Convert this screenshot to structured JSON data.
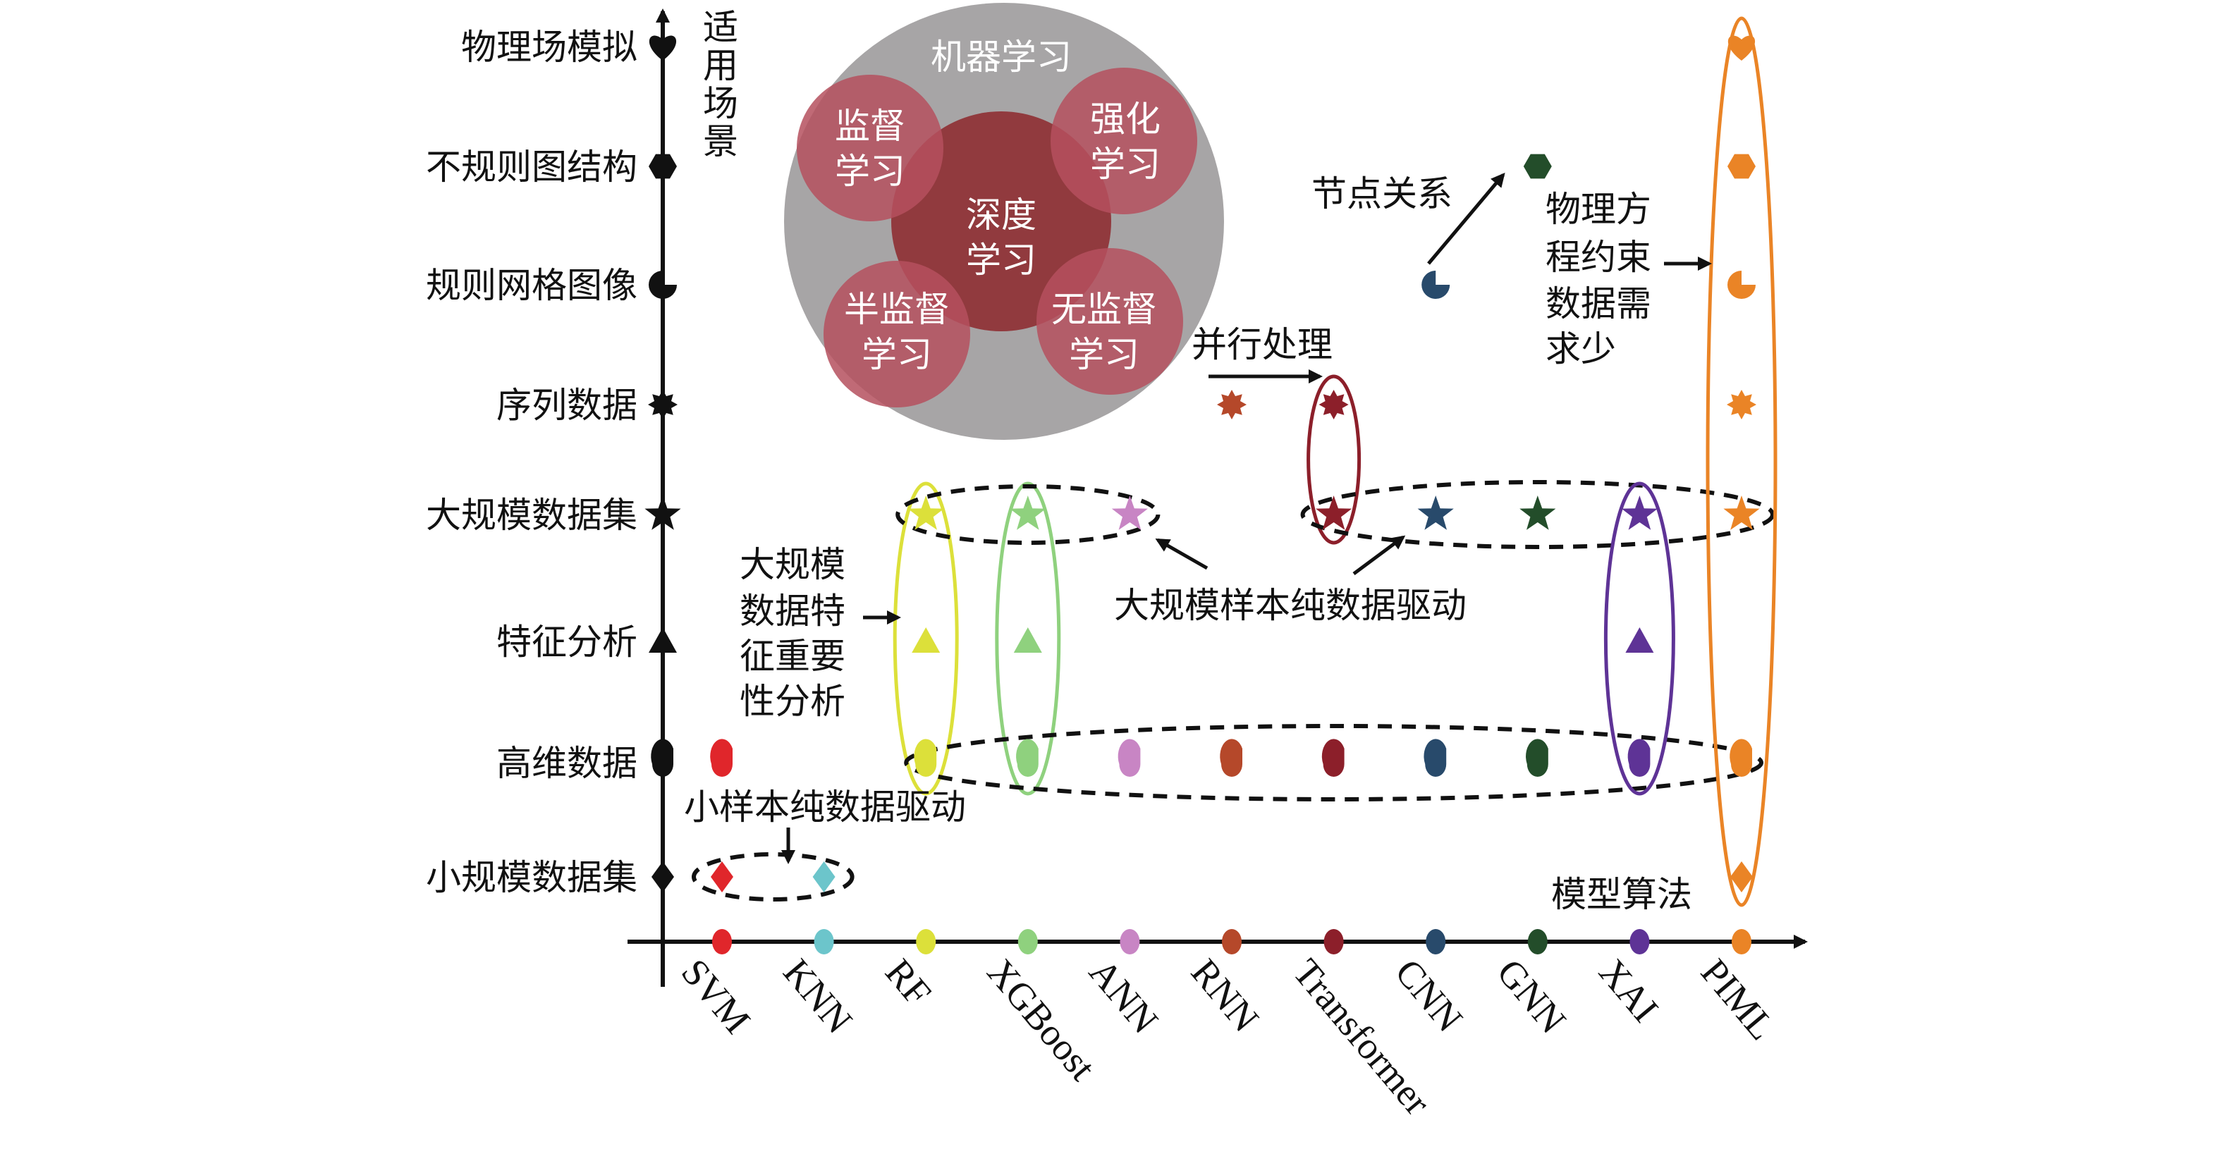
{
  "chart_data": {
    "type": "scatter",
    "xlabel": "模型算法",
    "ylabel": "适用场景",
    "models": [
      {
        "name": "SVM",
        "color": "#e0262b"
      },
      {
        "name": "KNN",
        "color": "#6cc5cb"
      },
      {
        "name": "RF",
        "color": "#dce03a"
      },
      {
        "name": "XGBoost",
        "color": "#8fd17e"
      },
      {
        "name": "ANN",
        "color": "#c885c4"
      },
      {
        "name": "RNN",
        "color": "#b5482a"
      },
      {
        "name": "Transformer",
        "color": "#8c1f2a"
      },
      {
        "name": "CNN",
        "color": "#284a6b"
      },
      {
        "name": "GNN",
        "color": "#234d2a"
      },
      {
        "name": "XAI",
        "color": "#5e3396"
      },
      {
        "name": "PIML",
        "color": "#ea8426"
      }
    ],
    "scenarios": [
      {
        "name": "物理场模拟",
        "shape": "heart"
      },
      {
        "name": "不规则图结构",
        "shape": "hexagon"
      },
      {
        "name": "规则网格图像",
        "shape": "pacman"
      },
      {
        "name": "序列数据",
        "shape": "star8"
      },
      {
        "name": "大规模数据集",
        "shape": "star5"
      },
      {
        "name": "特征分析",
        "shape": "triangle"
      },
      {
        "name": "高维数据",
        "shape": "teardrop"
      },
      {
        "name": "小规模数据集",
        "shape": "diamond"
      }
    ],
    "points": [
      [
        "SVM",
        "高维数据"
      ],
      [
        "SVM",
        "小规模数据集"
      ],
      [
        "KNN",
        "小规模数据集"
      ],
      [
        "RF",
        "大规模数据集"
      ],
      [
        "RF",
        "特征分析"
      ],
      [
        "RF",
        "高维数据"
      ],
      [
        "XGBoost",
        "大规模数据集"
      ],
      [
        "XGBoost",
        "特征分析"
      ],
      [
        "XGBoost",
        "高维数据"
      ],
      [
        "ANN",
        "大规模数据集"
      ],
      [
        "ANN",
        "高维数据"
      ],
      [
        "RNN",
        "序列数据"
      ],
      [
        "RNN",
        "高维数据"
      ],
      [
        "Transformer",
        "序列数据"
      ],
      [
        "Transformer",
        "大规模数据集"
      ],
      [
        "Transformer",
        "高维数据"
      ],
      [
        "CNN",
        "规则网格图像"
      ],
      [
        "CNN",
        "大规模数据集"
      ],
      [
        "CNN",
        "高维数据"
      ],
      [
        "GNN",
        "不规则图结构"
      ],
      [
        "GNN",
        "大规模数据集"
      ],
      [
        "GNN",
        "高维数据"
      ],
      [
        "XAI",
        "大规模数据集"
      ],
      [
        "XAI",
        "特征分析"
      ],
      [
        "XAI",
        "高维数据"
      ],
      [
        "PIML",
        "物理场模拟"
      ],
      [
        "PIML",
        "不规则图结构"
      ],
      [
        "PIML",
        "规则网格图像"
      ],
      [
        "PIML",
        "序列数据"
      ],
      [
        "PIML",
        "大规模数据集"
      ],
      [
        "PIML",
        "高维数据"
      ],
      [
        "PIML",
        "小规模数据集"
      ]
    ],
    "groups": [
      {
        "models": [
          "RF"
        ],
        "scenarios": [
          "大规模数据集",
          "高维数据"
        ],
        "style": "solid",
        "color": "#dce03a"
      },
      {
        "models": [
          "XGBoost"
        ],
        "scenarios": [
          "大规模数据集",
          "高维数据"
        ],
        "style": "solid",
        "color": "#8fd17e"
      },
      {
        "models": [
          "RF",
          "ANN"
        ],
        "scenarios": [
          "大规模数据集"
        ],
        "style": "dashed",
        "color": "#111111"
      },
      {
        "models": [
          "RF",
          "PIML"
        ],
        "scenarios": [
          "高维数据"
        ],
        "style": "dashed",
        "color": "#111111"
      },
      {
        "models": [
          "SVM",
          "KNN"
        ],
        "scenarios": [
          "小规模数据集"
        ],
        "style": "dashed",
        "color": "#111111"
      },
      {
        "models": [
          "Transformer"
        ],
        "scenarios": [
          "序列数据",
          "大规模数据集"
        ],
        "style": "solid",
        "color": "#8c1f2a"
      },
      {
        "models": [
          "Transformer",
          "PIML"
        ],
        "scenarios": [
          "大规模数据集"
        ],
        "style": "dashed",
        "color": "#111111"
      },
      {
        "models": [
          "XAI"
        ],
        "scenarios": [
          "大规模数据集",
          "高维数据"
        ],
        "style": "solid",
        "color": "#5e3396"
      },
      {
        "models": [
          "PIML"
        ],
        "scenarios": [
          "物理场模拟",
          "小规模数据集"
        ],
        "style": "solid",
        "color": "#ea8426"
      }
    ],
    "annotations": {
      "node_relation": "节点关系",
      "physics": [
        "物理方",
        "程约束",
        "数据需",
        "求少"
      ],
      "parallel": "并行处理",
      "feature_importance": [
        "大规模",
        "数据特",
        "征重要",
        "性分析"
      ],
      "large_sample": "大规模样本纯数据驱动",
      "small_sample": "小样本纯数据驱动"
    },
    "venn": {
      "outer": "机器学习",
      "center": [
        "深度",
        "学习"
      ],
      "supervised": [
        "监督",
        "学习"
      ],
      "reinforcement": [
        "强化",
        "学习"
      ],
      "semi_supervised": [
        "半监督",
        "学习"
      ],
      "unsupervised": [
        "无监督",
        "学习"
      ],
      "colors": {
        "outer": "#a7a5a6",
        "center": "#913a3e",
        "petal": "#b5505e"
      }
    },
    "ylabel_chars": [
      "适",
      "用",
      "场",
      "景"
    ]
  }
}
